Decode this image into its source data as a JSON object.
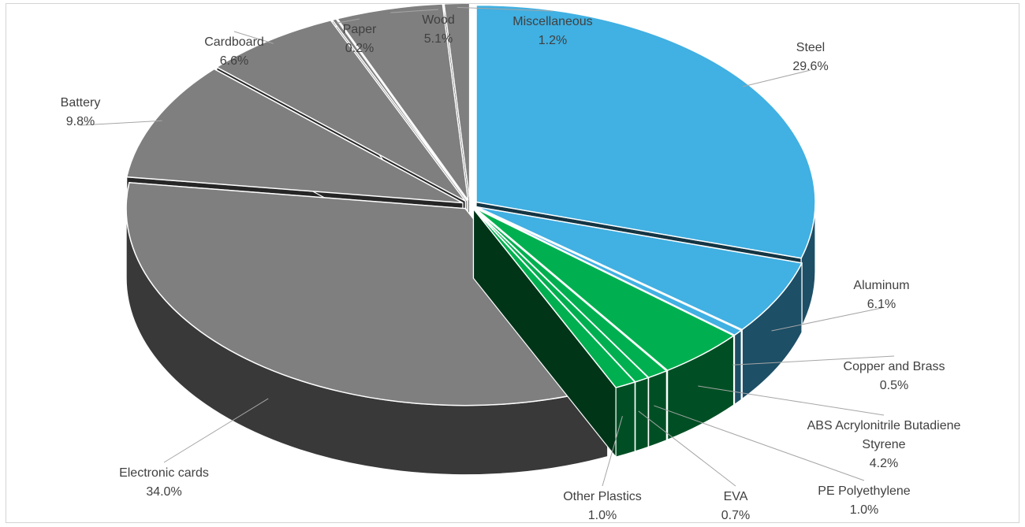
{
  "chart_data": {
    "type": "pie",
    "style": "3d-exploded",
    "title": "",
    "slices": [
      {
        "name": "Steel",
        "value": 29.6,
        "label": "29.6%",
        "color": "#41b0e2"
      },
      {
        "name": "Aluminum",
        "value": 6.1,
        "label": "6.1%",
        "color": "#41b0e2"
      },
      {
        "name": "Copper and Brass",
        "value": 0.5,
        "label": "0.5%",
        "color": "#41b0e2"
      },
      {
        "name": "ABS Acrylonitrile Butadiene Styrene",
        "value": 4.2,
        "label": "4.2%",
        "color": "#00b050"
      },
      {
        "name": "PE Polyethylene",
        "value": 1.0,
        "label": "1.0%",
        "color": "#00b050"
      },
      {
        "name": "EVA",
        "value": 0.7,
        "label": "0.7%",
        "color": "#00b050"
      },
      {
        "name": "Other Plastics",
        "value": 1.0,
        "label": "1.0%",
        "color": "#00b050"
      },
      {
        "name": "Electronic cards",
        "value": 34.0,
        "label": "34.0%",
        "color": "#7f7f7f"
      },
      {
        "name": "Battery",
        "value": 9.8,
        "label": "9.8%",
        "color": "#7f7f7f"
      },
      {
        "name": "Cardboard",
        "value": 6.6,
        "label": "6.6%",
        "color": "#7f7f7f"
      },
      {
        "name": "Paper",
        "value": 0.2,
        "label": "0.2%",
        "color": "#7f7f7f"
      },
      {
        "name": "Wood",
        "value": 5.1,
        "label": "5.1%",
        "color": "#7f7f7f"
      },
      {
        "name": "Miscellaneous",
        "value": 1.2,
        "label": "1.2%",
        "color": "#7f7f7f"
      }
    ],
    "data_labels": "name and percentage, outside with leader lines",
    "legend": "none"
  }
}
